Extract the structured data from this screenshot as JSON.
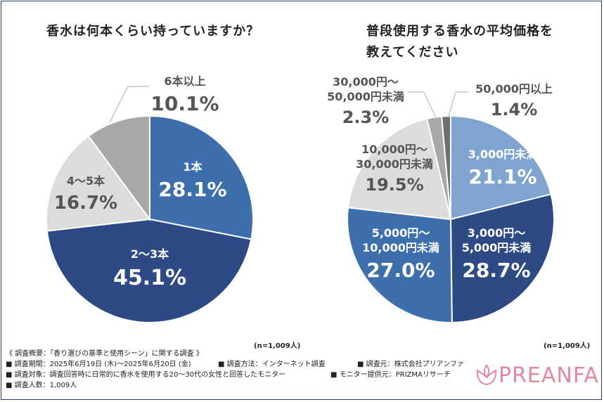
{
  "chart_data": [
    {
      "type": "pie",
      "title": "香水は何本くらい持っていますか？",
      "sample_size": "(n=1,009人)",
      "slices": [
        {
          "label": "1本",
          "value": 28.1,
          "value_label": "28.1%",
          "color": "#3e6fad"
        },
        {
          "label": "2〜3本",
          "value": 45.1,
          "value_label": "45.1%",
          "color": "#2d4a85"
        },
        {
          "label": "4〜5本",
          "value": 16.7,
          "value_label": "16.7%",
          "color": "#dcdcdc"
        },
        {
          "label": "6本以上",
          "value": 10.1,
          "value_label": "10.1%",
          "color": "#a8a8a8"
        }
      ]
    },
    {
      "type": "pie",
      "title_lines": [
        "普段使用する香水の平均価格を",
        "教えてください"
      ],
      "sample_size": "(n=1,009人)",
      "slices": [
        {
          "label_lines": [
            "3,000円未満"
          ],
          "value": 21.1,
          "value_label": "21.1%",
          "color": "#7fa4cf"
        },
        {
          "label_lines": [
            "3,000円〜",
            "5,000円未満"
          ],
          "value": 28.7,
          "value_label": "28.7%",
          "color": "#2d4a85"
        },
        {
          "label_lines": [
            "5,000円〜",
            "10,000円未満"
          ],
          "value": 27.0,
          "value_label": "27.0%",
          "color": "#3e6fad"
        },
        {
          "label_lines": [
            "10,000円〜",
            "30,000円未満"
          ],
          "value": 19.5,
          "value_label": "19.5%",
          "color": "#dcdcdc"
        },
        {
          "label_lines": [
            "30,000円〜",
            "50,000円未満"
          ],
          "value": 2.3,
          "value_label": "2.3%",
          "color": "#a8a8a8"
        },
        {
          "label_lines": [
            "50,000円以上"
          ],
          "value": 1.4,
          "value_label": "1.4%",
          "color": "#707070"
        }
      ]
    }
  ],
  "footer": {
    "overview": "《 調査概要：「香り選びの基準と使用シーン」に関する調査 》",
    "period": "■ 調査期間：2025年6月19日 (木)〜2025年6月20日 (金)",
    "method": "■ 調査方法：インターネット調査",
    "organizer": "■ 調査元：株式会社プリアンファ",
    "target": "■ 調査対象：調査回答時に日常的に香水を使用する20〜30代の女性と回答したモニター",
    "provider": "■ モニター提供元：PRIZMAリサーチ",
    "count": "■ 調査人数：1,009人"
  },
  "logo": {
    "text": "PREANFA"
  }
}
